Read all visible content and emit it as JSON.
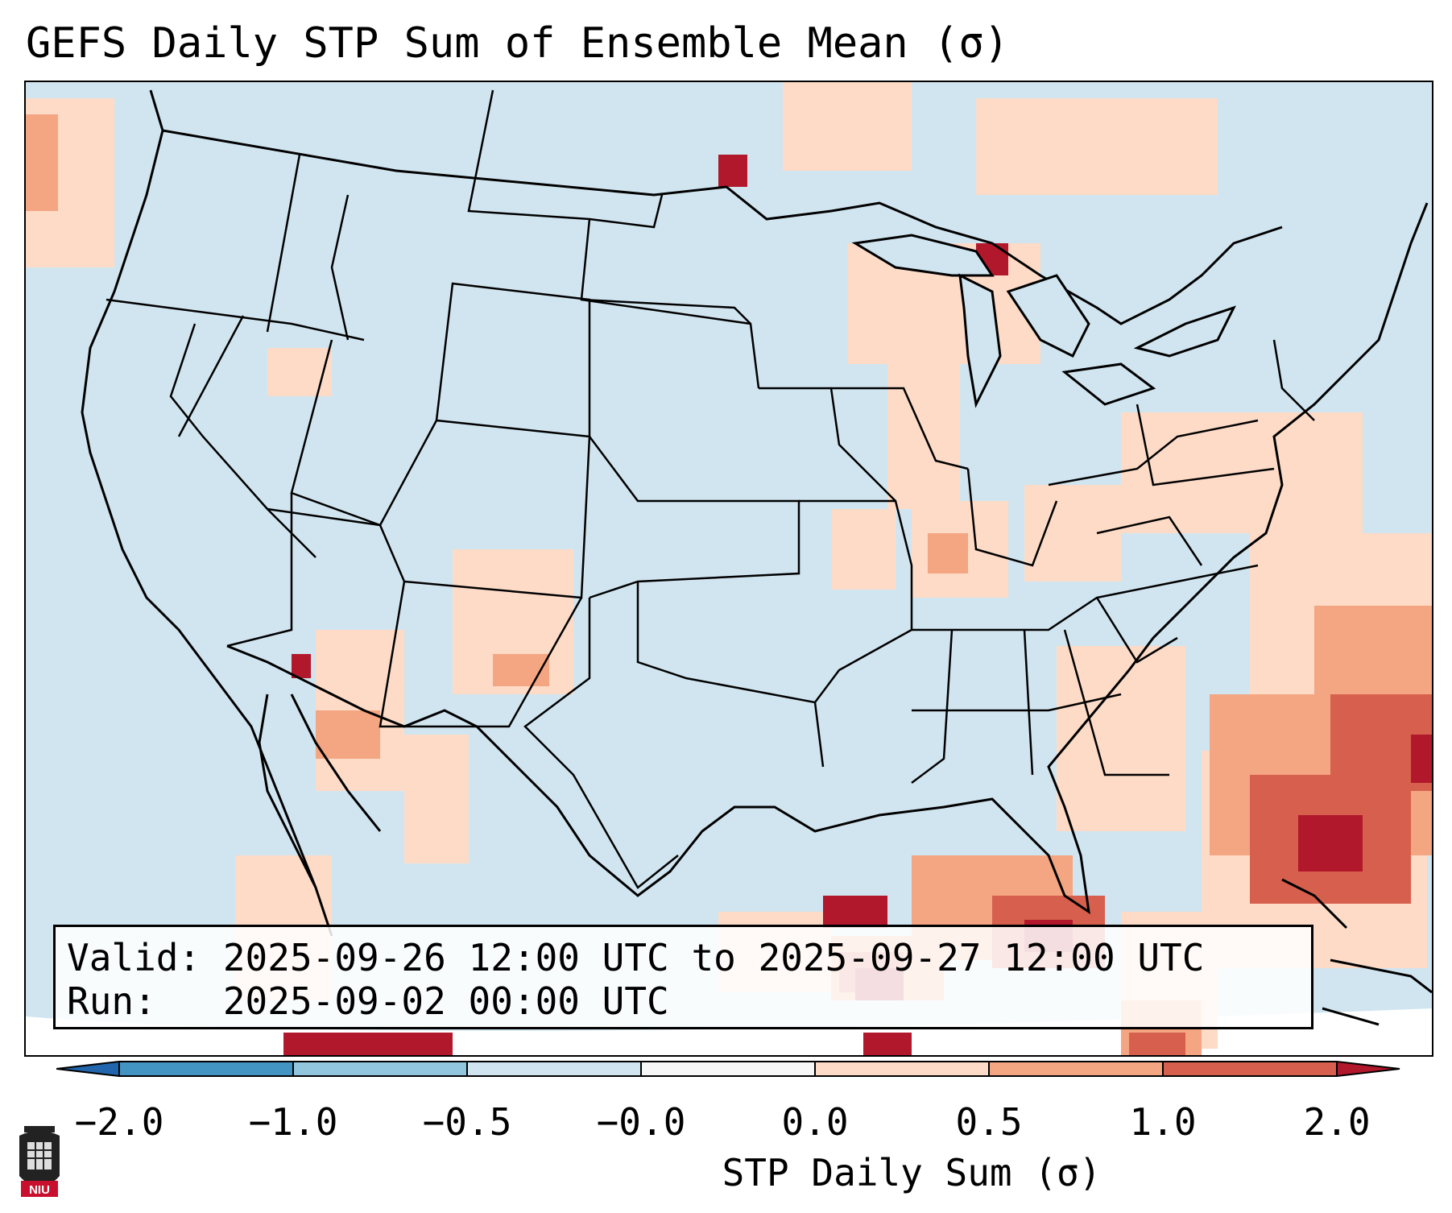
{
  "title": "GEFS Daily STP Sum of Ensemble Mean (σ)",
  "map": {
    "region": "Contiguous United States, northern Mexico and Caribbean",
    "background_color": "#d1e5f0",
    "outline_color": "#000000"
  },
  "info": {
    "valid_line": "Valid: 2025-09-26 12:00 UTC to 2025-09-27 12:00 UTC",
    "run_line": "Run:   2025-09-02 00:00 UTC"
  },
  "colorbar": {
    "label": "STP Daily Sum (σ)",
    "tick_labels": [
      "−2.0",
      "−1.0",
      "−0.5",
      "−0.0",
      "0.0",
      "0.5",
      "1.0",
      "2.0"
    ],
    "bins": [
      {
        "range": "< -2.0",
        "color": "#2166ac"
      },
      {
        "range": "-2.0 to -1.0",
        "color": "#4393c3"
      },
      {
        "range": "-1.0 to -0.5",
        "color": "#92c5de"
      },
      {
        "range": "-0.5 to -0.0",
        "color": "#d1e5f0"
      },
      {
        "range": "-0.0 to 0.0",
        "color": "#f7f7f7"
      },
      {
        "range": "0.0 to 0.5",
        "color": "#fddbc7"
      },
      {
        "range": "0.5 to 1.0",
        "color": "#f4a582"
      },
      {
        "range": "1.0 to 2.0",
        "color": "#d6604d"
      },
      {
        "range": "> 2.0",
        "color": "#b2182b"
      }
    ]
  },
  "logo": {
    "text": "NIU",
    "icon": "university-logo-icon",
    "color": "#c8102e"
  }
}
